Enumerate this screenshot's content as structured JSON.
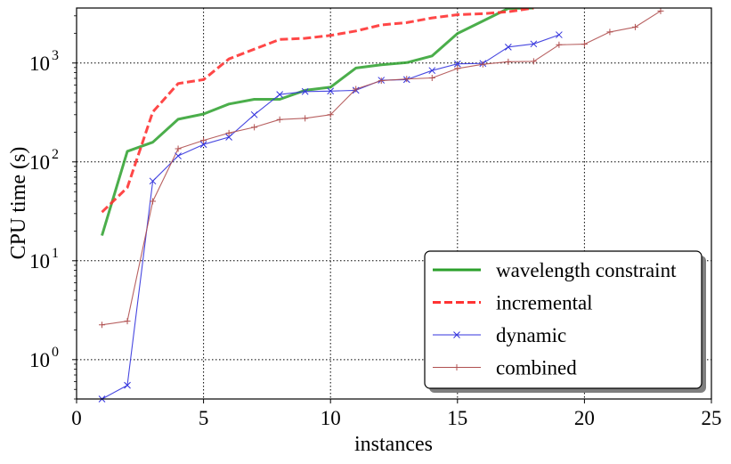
{
  "chart_data": {
    "type": "line",
    "xlabel": "instances",
    "ylabel": "CPU time (s)",
    "xlim": [
      0,
      25
    ],
    "ylim": [
      0.4,
      3600
    ],
    "yscale": "log",
    "grid": true,
    "legend_position": "lower-right",
    "x_ticks": [
      0,
      5,
      10,
      15,
      20,
      25
    ],
    "y_ticks": [
      {
        "value": 1,
        "base": "10",
        "exp": "0"
      },
      {
        "value": 10,
        "base": "10",
        "exp": "1"
      },
      {
        "value": 100,
        "base": "10",
        "exp": "2"
      },
      {
        "value": 1000,
        "base": "10",
        "exp": "3"
      }
    ],
    "series": [
      {
        "name": "wavelength constraint",
        "color": "#2ca02c",
        "style": "solid",
        "marker": "none",
        "x": [
          1,
          2,
          3,
          4,
          5,
          6,
          7,
          8,
          9,
          10,
          11,
          12,
          13,
          14,
          15,
          16,
          17,
          18
        ],
        "y": [
          18,
          128,
          158,
          270,
          305,
          385,
          430,
          430,
          530,
          570,
          890,
          960,
          1010,
          1180,
          1990,
          2660,
          3560,
          3600
        ]
      },
      {
        "name": "incremental",
        "color": "#ff3333",
        "style": "dashed",
        "marker": "none",
        "x": [
          1,
          2,
          3,
          4,
          5,
          6,
          7,
          8,
          9,
          10,
          11,
          12,
          13,
          14,
          15,
          16,
          17,
          18
        ],
        "y": [
          31,
          55,
          320,
          620,
          680,
          1100,
          1380,
          1730,
          1780,
          1900,
          2110,
          2430,
          2560,
          2860,
          3080,
          3150,
          3300,
          3600
        ]
      },
      {
        "name": "dynamic",
        "color": "#3333dd",
        "style": "solid",
        "marker": "x",
        "x": [
          1,
          2,
          3,
          4,
          5,
          6,
          7,
          8,
          9,
          10,
          11,
          12,
          13,
          14,
          15,
          16,
          17,
          18,
          19
        ],
        "y": [
          0.4,
          0.55,
          64,
          115,
          150,
          178,
          300,
          480,
          515,
          520,
          530,
          670,
          680,
          840,
          980,
          990,
          1450,
          1560,
          1930
        ]
      },
      {
        "name": "combined",
        "color": "#b05050",
        "style": "solid",
        "marker": "+",
        "x": [
          1,
          2,
          3,
          4,
          5,
          6,
          7,
          8,
          9,
          10,
          11,
          12,
          13,
          14,
          15,
          16,
          17,
          18,
          19,
          20,
          21,
          22,
          23
        ],
        "y": [
          2.25,
          2.45,
          40,
          136,
          165,
          196,
          224,
          268,
          276,
          300,
          545,
          662,
          690,
          706,
          880,
          970,
          1030,
          1040,
          1530,
          1550,
          2060,
          2310,
          3360
        ]
      }
    ]
  }
}
